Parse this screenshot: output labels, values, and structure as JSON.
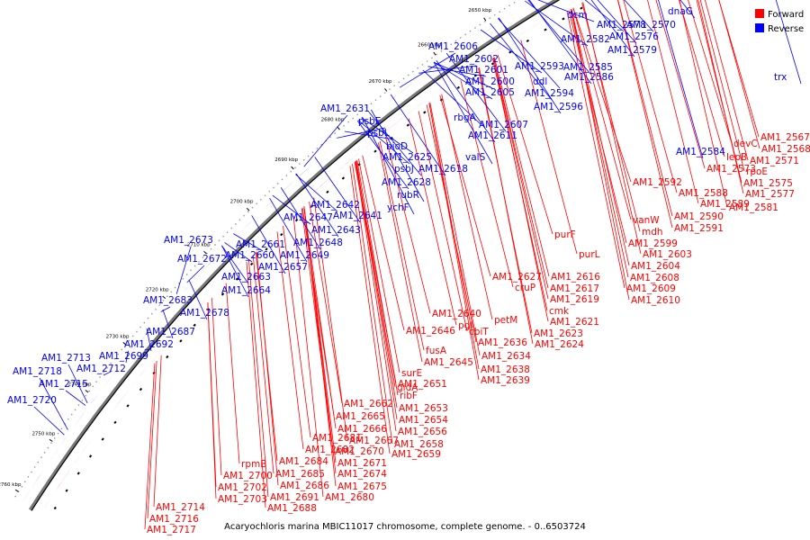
{
  "caption": "Acaryochloris marina MBIC11017 chromosome, complete genome. - 0..6503724",
  "legend": [
    {
      "label": "Forward",
      "color": "#ff0000"
    },
    {
      "label": "Reverse",
      "color": "#0000ff"
    }
  ],
  "colors": {
    "forward": "#ff0000",
    "reverse": "#0000ff",
    "axis": "#000000"
  },
  "ticks": [
    "2600 kbp",
    "2610 kbp",
    "2620 kbp",
    "2630 kbp",
    "2640 kbp",
    "2650 kbp",
    "2660 kbp",
    "2670 kbp",
    "2680 kbp",
    "2690 kbp",
    "2700 kbp",
    "2710 kbp",
    "2720 kbp",
    "2730 kbp",
    "2740 kbp",
    "2750 kbp",
    "2760 kbp"
  ],
  "forward_labels": [
    "devC",
    "AM1_2567",
    "AM1_2568",
    "lepB",
    "AM1_2571",
    "AM1_2573",
    "rpoE",
    "AM1_2575",
    "AM1_2577",
    "AM1_2581",
    "AM1_2592",
    "AM1_2588",
    "AM1_2589",
    "AM1_2590",
    "AM1_2591",
    "vanW",
    "mdh",
    "AM1_2599",
    "AM1_2603",
    "purF",
    "AM1_2604",
    "purL",
    "AM1_2608",
    "AM1_2609",
    "AM1_2610",
    "AM1_2616",
    "AM1_2627",
    "cruP",
    "AM1_2617",
    "AM1_2619",
    "cmk",
    "petM",
    "AM1_2621",
    "AM1_2640",
    "pgl",
    "cbiT",
    "AM1_2623",
    "AM1_2646",
    "AM1_2636",
    "AM1_2624",
    "AM1_2634",
    "fusA",
    "AM1_2645",
    "AM1_2638",
    "AM1_2639",
    "surE",
    "AM1_2651",
    "gidA",
    "ribF",
    "AM1_2662",
    "AM1_2653",
    "AM1_2665",
    "AM1_2654",
    "AM1_2666",
    "AM1_2656",
    "AM1_2667",
    "AM1_2658",
    "AM1_2681",
    "AM1_2670",
    "AM1_2659",
    "AM1_2682",
    "AM1_2671",
    "AM1_2684",
    "AM1_2674",
    "rpmB",
    "AM1_2685",
    "AM1_2675",
    "AM1_2700",
    "AM1_2686",
    "AM1_2680",
    "AM1_2702",
    "AM1_2691",
    "AM1_2703",
    "AM1_2688",
    "AM1_2714",
    "AM1_2716",
    "AM1_2717"
  ],
  "reverse_labels": [
    "dcm",
    "dnaG",
    "AM1_2578",
    "AM1_2570",
    "AM1_2582",
    "AM1_2576",
    "AM1_2606",
    "AM1_2579",
    "AM1_2602",
    "AM1_2593",
    "AM1_2585",
    "AM1_2601",
    "trx",
    "AM1_2600",
    "ddl",
    "AM1_2586",
    "AM1_2605",
    "AM1_2594",
    "AM1_2596",
    "AM1_2631",
    "psbE",
    "rbgA",
    "AM1_2607",
    "psbL",
    "AM1_2611",
    "bioD",
    "AM1_2584",
    "valS",
    "AM1_2625",
    "psbJ",
    "AM1_2618",
    "AM1_2628",
    "rubR",
    "ychF",
    "AM1_2642",
    "AM1_2647",
    "AM1_2641",
    "AM1_2643",
    "AM1_2673",
    "AM1_2661",
    "AM1_2648",
    "AM1_2672",
    "AM1_2660",
    "AM1_2649",
    "AM1_2657",
    "AM1_2663",
    "AM1_2664",
    "AM1_2683",
    "AM1_2678",
    "AM1_2687",
    "AM1_2692",
    "AM1_2699",
    "AM1_2713",
    "AM1_2718",
    "AM1_2712",
    "AM1_2715",
    "AM1_2720"
  ]
}
